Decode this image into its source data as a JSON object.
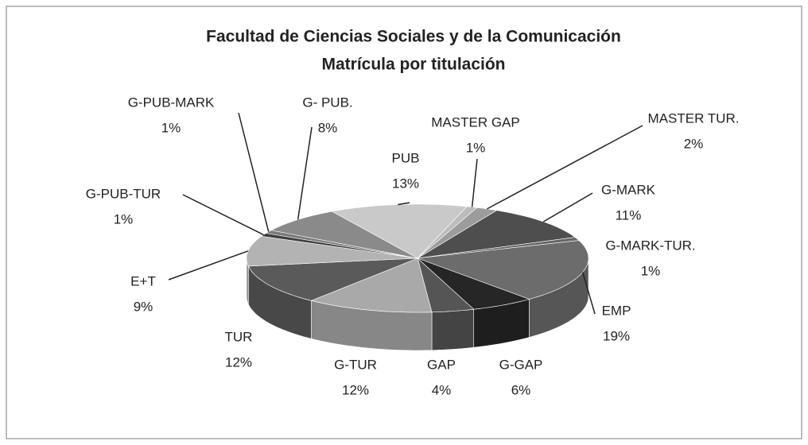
{
  "chart_data": {
    "type": "pie3d",
    "title": "Facultad de Ciencias Sociales y de la Comunicación",
    "subtitle": "Matrícula por titulación",
    "categories": [
      "PUB",
      "MASTER GAP",
      "MASTER TUR.",
      "G-MARK",
      "G-MARK-TUR.",
      "EMP",
      "G-GAP",
      "GAP",
      "G-TUR",
      "TUR",
      "E+T",
      "G-PUB-TUR",
      "G-PUB-MARK",
      "G- PUB."
    ],
    "values": [
      13,
      1,
      2,
      11,
      1,
      19,
      6,
      4,
      12,
      12,
      9,
      1,
      1,
      8
    ],
    "value_labels": [
      "13%",
      "1%",
      "2%",
      "11%",
      "1%",
      "19%",
      "6%",
      "4%",
      "12%",
      "12%",
      "9%",
      "1%",
      "1%",
      "8%"
    ],
    "colors": [
      "#c9c9c9",
      "#bcbcbc",
      "#9c9c9c",
      "#4e4e4e",
      "#666666",
      "#6c6c6c",
      "#262626",
      "#555555",
      "#a9a9a9",
      "#5a5a5a",
      "#b3b3b3",
      "#3e3e3e",
      "#7a7a7a",
      "#8a8a8a"
    ]
  }
}
